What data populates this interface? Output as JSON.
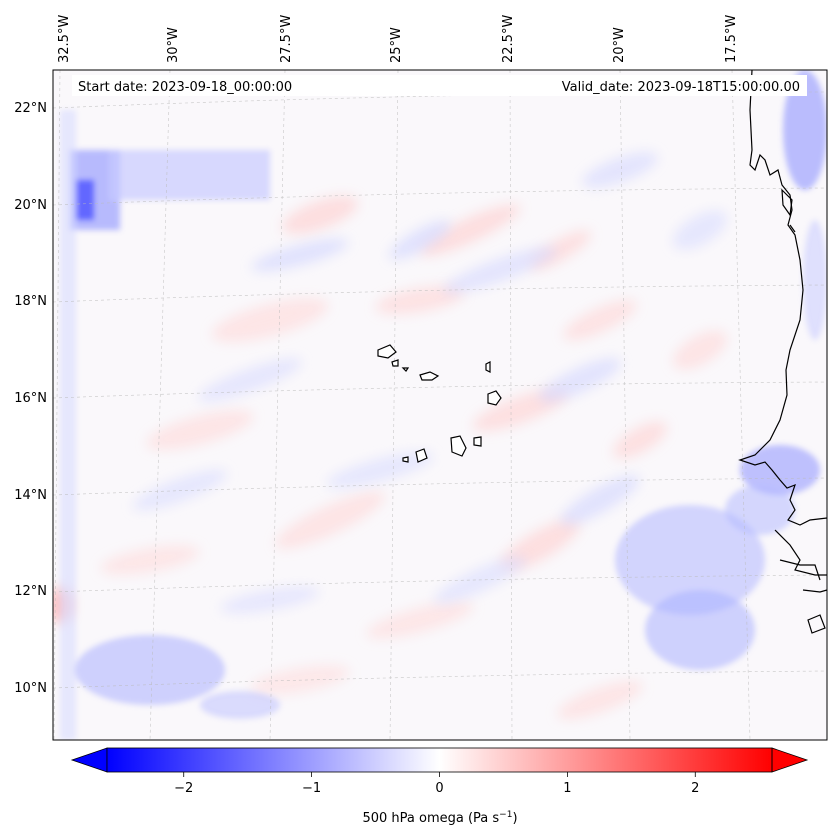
{
  "map": {
    "header_left": "Start date: 2023-09-18_00:00:00",
    "header_right": "Valid_date: 2023-09-18T15:00:00.00",
    "lon_labels": [
      "32.5°W",
      "30°W",
      "27.5°W",
      "25°W",
      "22.5°W",
      "20°W",
      "17.5°W"
    ],
    "lat_labels": [
      "22°N",
      "20°N",
      "18°N",
      "16°N",
      "14°N",
      "12°N",
      "10°N"
    ],
    "field_name": "500 hPa omega"
  },
  "colorbar": {
    "label_prefix": "500 hPa omega (Pa s",
    "label_sup": "−1",
    "label_suffix": ")",
    "ticks": [
      "−2",
      "−1",
      "0",
      "1",
      "2"
    ],
    "tick_values": [
      -2,
      -1,
      0,
      1,
      2
    ],
    "range": [
      -2.6,
      2.6
    ],
    "min_color": "#0000ff",
    "mid_color": "#ffffff",
    "max_color": "#ff0000",
    "extend": "both"
  },
  "colors": {
    "coastline": "#000000",
    "gridline": "#bbbbbb",
    "positive": "#ff0000",
    "negative": "#0000ff"
  }
}
